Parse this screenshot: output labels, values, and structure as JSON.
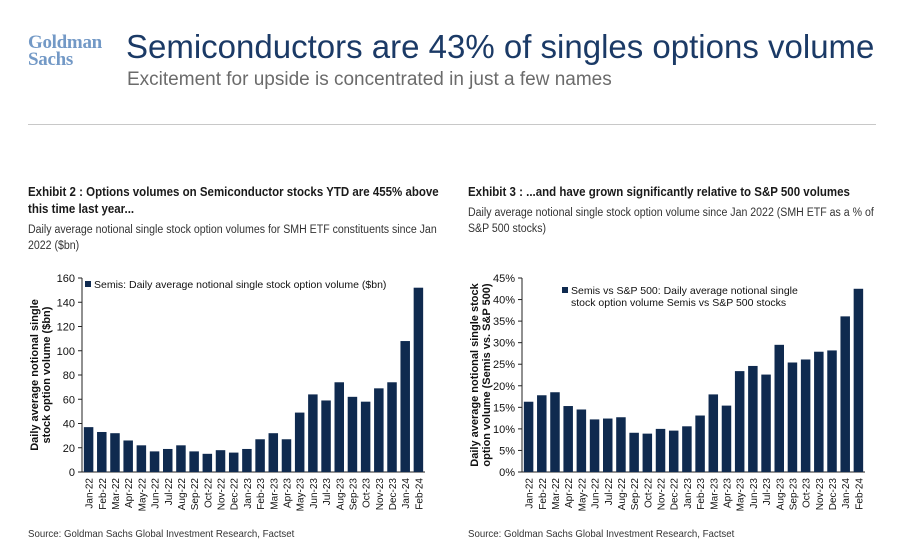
{
  "header": {
    "logo_line1": "Goldman",
    "logo_line2": "Sachs",
    "title": "Semiconductors are 43% of singles options volume",
    "subtitle": "Excitement for upside is concentrated in just a few names"
  },
  "colors": {
    "bar": "#0f2a4f",
    "title": "#1b3a66",
    "logo": "#7399c6"
  },
  "exhibits": [
    {
      "title": "Exhibit 2 : Options volumes on Semiconductor stocks YTD are 455% above this time last year...",
      "subtitle": "Daily average notional single stock option volumes for SMH ETF constituents since Jan 2022 ($bn)",
      "source": "Source: Goldman Sachs Global Investment Research, Factset"
    },
    {
      "title": "Exhibit 3 : ...and have grown significantly relative to S&P 500 volumes",
      "subtitle": "Daily average notional single stock option volume since Jan 2022 (SMH ETF as a % of S&P 500 stocks)",
      "source": "Source: Goldman Sachs Global Investment Research, Factset"
    }
  ],
  "chart_data": [
    {
      "type": "bar",
      "categories": [
        "Jan-22",
        "Feb-22",
        "Mar-22",
        "Apr-22",
        "May-22",
        "Jun-22",
        "Jul-22",
        "Aug-22",
        "Sep-22",
        "Oct-22",
        "Nov-22",
        "Dec-22",
        "Jan-23",
        "Feb-23",
        "Mar-23",
        "Apr-23",
        "May-23",
        "Jun-23",
        "Jul-23",
        "Aug-23",
        "Sep-23",
        "Oct-23",
        "Nov-23",
        "Dec-23",
        "Jan-24",
        "Feb-24"
      ],
      "series": [
        {
          "name": "Semis: Daily average notional single stock option volume ($bn)",
          "values": [
            37,
            33,
            32,
            26,
            22,
            17,
            19,
            22,
            17,
            15,
            18,
            16,
            19,
            27,
            32,
            27,
            49,
            64,
            59,
            74,
            62,
            58,
            69,
            74,
            108,
            152
          ]
        }
      ],
      "ylabel": "Daily average notional single stock option volume ($bn)",
      "xlabel": "",
      "ylim": [
        0,
        160
      ],
      "yticks": [
        0,
        20,
        40,
        60,
        80,
        100,
        120,
        140,
        160
      ],
      "ytick_labels": [
        "0",
        "20",
        "40",
        "60",
        "80",
        "100",
        "120",
        "140",
        "160"
      ],
      "grid": false,
      "legend": "top-left"
    },
    {
      "type": "bar",
      "categories": [
        "Jan-22",
        "Feb-22",
        "Mar-22",
        "Apr-22",
        "May-22",
        "Jun-22",
        "Jul-22",
        "Aug-22",
        "Sep-22",
        "Oct-22",
        "Nov-22",
        "Dec-22",
        "Jan-23",
        "Feb-23",
        "Mar-23",
        "Apr-23",
        "May-23",
        "Jun-23",
        "Jul-23",
        "Aug-23",
        "Sep-23",
        "Oct-23",
        "Nov-23",
        "Dec-23",
        "Jan-24",
        "Feb-24"
      ],
      "series": [
        {
          "name": "Semis vs S&P 500: Daily average notional single stock option volume Semis vs S&P 500 stocks",
          "values": [
            16.3,
            17.8,
            18.5,
            15.3,
            14.5,
            12.2,
            12.4,
            12.7,
            9.1,
            8.9,
            10.0,
            9.6,
            10.6,
            13.1,
            18.0,
            15.4,
            23.4,
            24.6,
            22.6,
            29.5,
            25.4,
            26.1,
            27.9,
            28.2,
            36.1,
            42.5
          ]
        }
      ],
      "ylabel": "Daily average notional single stock option volume (Semis vs. S&P 500)",
      "xlabel": "",
      "ylim": [
        0,
        45
      ],
      "yticks": [
        0,
        5,
        10,
        15,
        20,
        25,
        30,
        35,
        40,
        45
      ],
      "ytick_labels": [
        "0%",
        "5%",
        "10%",
        "15%",
        "20%",
        "25%",
        "30%",
        "35%",
        "40%",
        "45%"
      ],
      "grid": false,
      "legend": "top-left"
    }
  ]
}
